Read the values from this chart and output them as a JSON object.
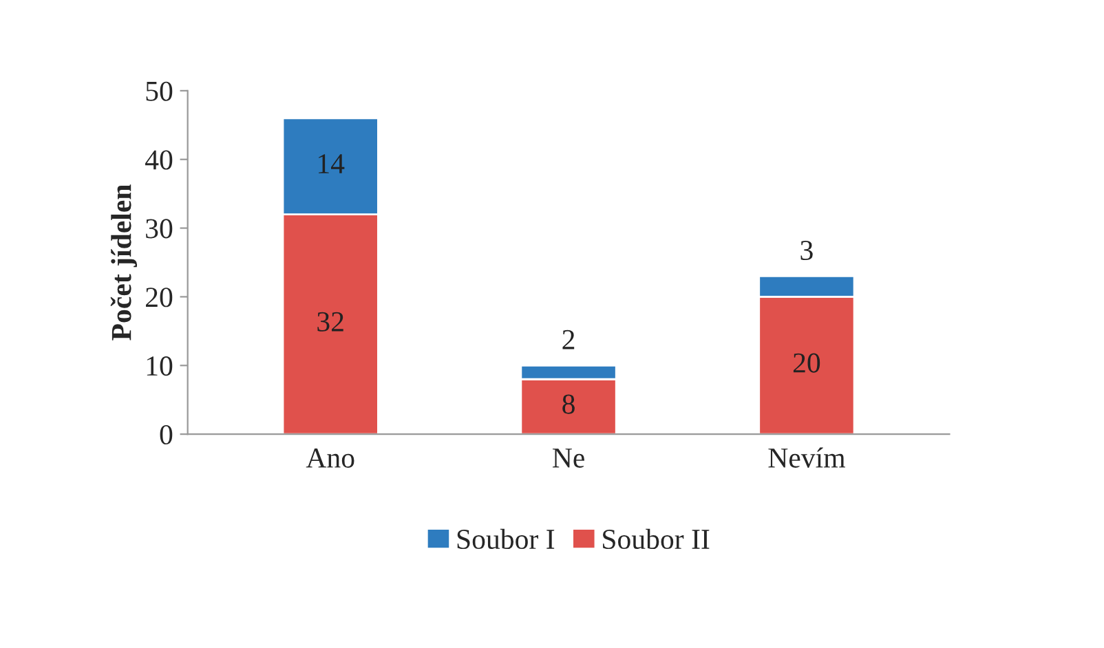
{
  "chart_data": {
    "type": "bar",
    "ylabel": "Počet jídelen",
    "categories": [
      "Ano",
      "Ne",
      "Nevím"
    ],
    "stacked": true,
    "data_labels": true,
    "series": [
      {
        "name": "Soubor II",
        "color": "#e0514c",
        "values": [
          32,
          8,
          20
        ]
      },
      {
        "name": "Soubor I",
        "color": "#2e7cbf",
        "values": [
          14,
          2,
          3
        ]
      }
    ],
    "ylim": [
      0,
      50
    ],
    "yticks": [
      0,
      10,
      20,
      30,
      40,
      50
    ],
    "grid": false,
    "legend": "bottom"
  }
}
